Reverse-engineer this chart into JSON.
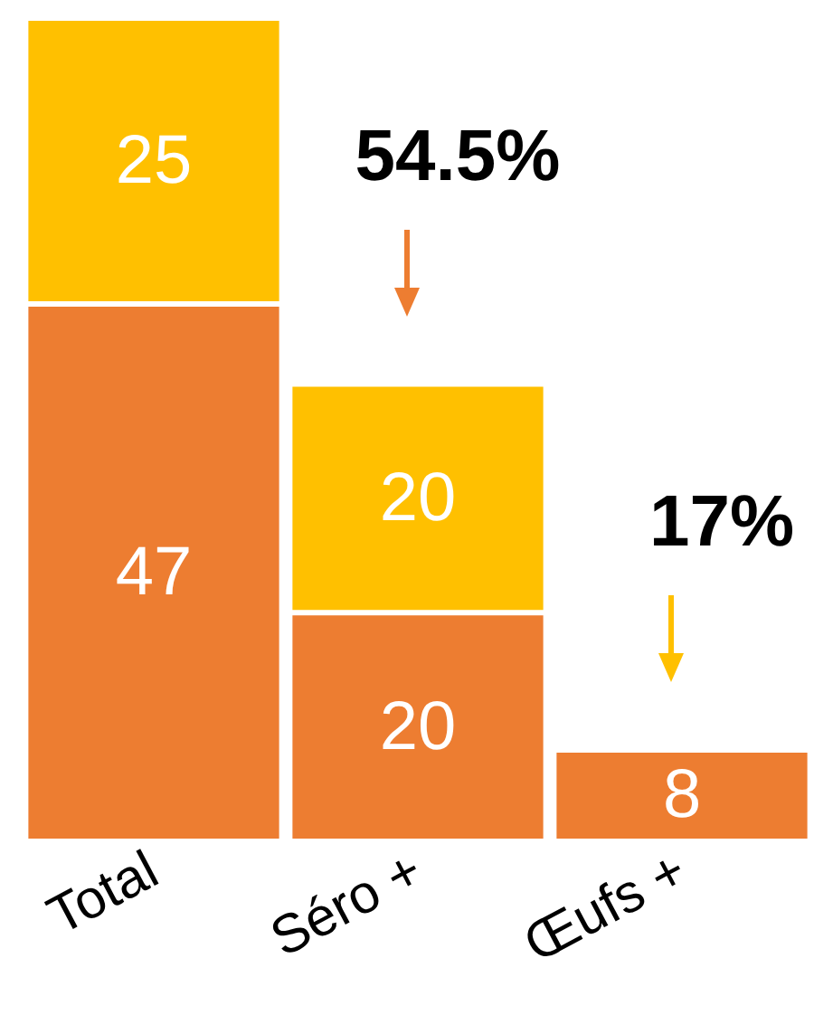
{
  "chart_data": {
    "type": "bar",
    "stacked": true,
    "data_labels": true,
    "categories": [
      "Total",
      "Séro +",
      "Œufs +"
    ],
    "series": [
      {
        "color": "#ed7d31",
        "values": [
          47,
          20,
          8
        ]
      },
      {
        "color": "#ffc000",
        "values": [
          25,
          20,
          null
        ]
      }
    ],
    "annotations": [
      {
        "text": "54.5%",
        "x": "Séro +",
        "y": 40
      },
      {
        "text": "17%",
        "x": "Œufs +",
        "y": 8
      }
    ]
  }
}
